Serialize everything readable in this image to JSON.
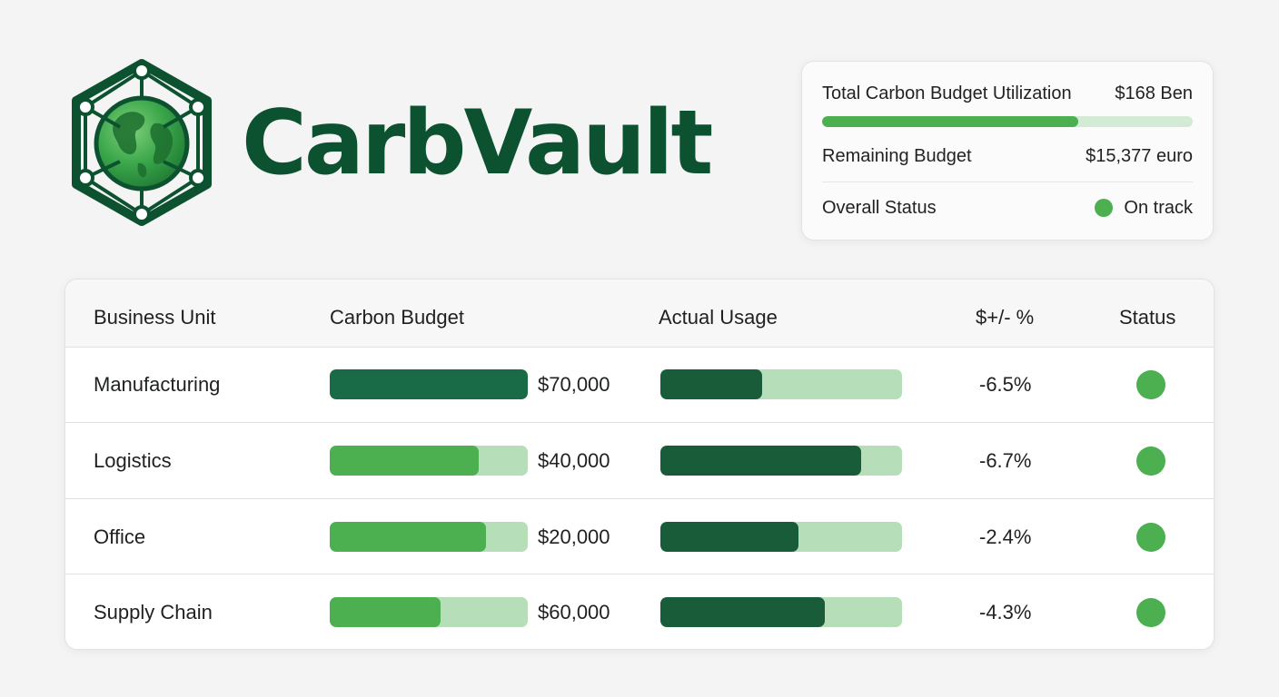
{
  "brand": {
    "name": "CarbVault",
    "logo_icon": "globe-network-hexagon-icon",
    "colors": {
      "dark_green": "#0d5230",
      "globe_green": "#3aa64a"
    }
  },
  "summary": {
    "utilization_label": "Total Carbon Budget Utilization",
    "utilization_value": "$168 Ben",
    "utilization_fraction": 0.69,
    "remaining_label": "Remaining Budget",
    "remaining_value": "$15,377 euro",
    "status_label": "Overall Status",
    "status_value": "On track",
    "status_color": "#4caf50"
  },
  "table": {
    "headers": {
      "unit": "Business Unit",
      "budget": "Carbon Budget",
      "usage": "Actual Usage",
      "variance": "$+/- %",
      "status": "Status"
    },
    "rows": [
      {
        "unit": "Manufacturing",
        "budget": "$70,000",
        "budget_fraction": 1.0,
        "usage_fraction": 0.42,
        "variance": "-6.5%",
        "status_color": "#4caf50"
      },
      {
        "unit": "Logistics",
        "budget": "$40,000",
        "budget_fraction": 0.75,
        "usage_fraction": 0.83,
        "variance": "-6.7%",
        "status_color": "#4caf50"
      },
      {
        "unit": "Office",
        "budget": "$20,000",
        "budget_fraction": 0.79,
        "usage_fraction": 0.57,
        "variance": "-2.4%",
        "status_color": "#4caf50"
      },
      {
        "unit": "Supply Chain",
        "budget": "$60,000",
        "budget_fraction": 0.56,
        "usage_fraction": 0.68,
        "variance": "-4.3%",
        "status_color": "#4caf50"
      }
    ]
  }
}
